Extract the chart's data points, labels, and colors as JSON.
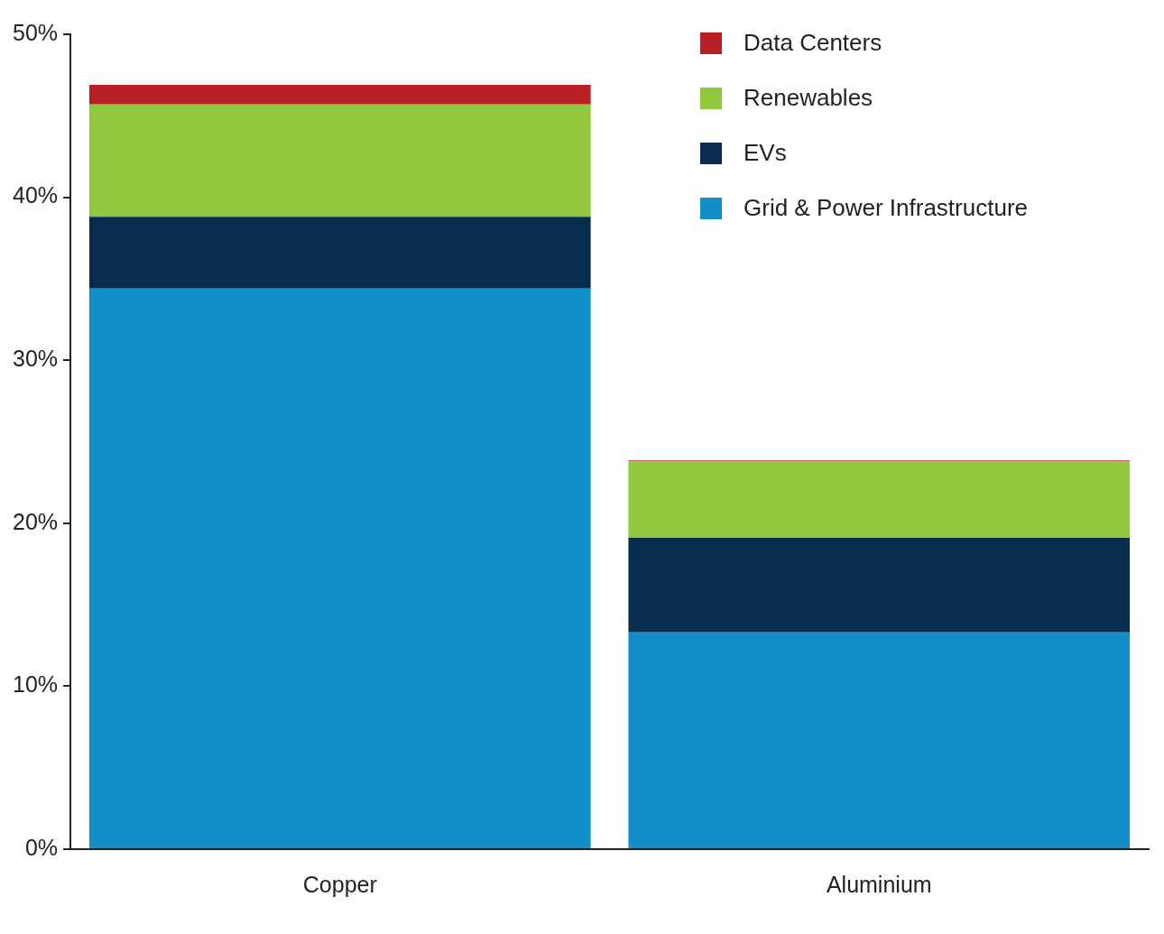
{
  "chart_data": {
    "type": "bar",
    "stacked": true,
    "categories": [
      "Copper",
      "Aluminium"
    ],
    "series": [
      {
        "name": "Grid & Power Infrastructure",
        "color": "#128fc6",
        "values": [
          34.4,
          13.3
        ]
      },
      {
        "name": "EVs",
        "color": "#082c4d",
        "values": [
          4.4,
          5.8
        ]
      },
      {
        "name": "Renewables",
        "color": "#92c83e",
        "values": [
          6.9,
          4.7
        ]
      },
      {
        "name": "Data Centers",
        "color": "#b82025",
        "values": [
          1.2,
          0.05
        ]
      }
    ],
    "ylim": [
      0,
      50
    ],
    "yticks": [
      {
        "value": 0,
        "label": "0%"
      },
      {
        "value": 10,
        "label": "10%"
      },
      {
        "value": 20,
        "label": "20%"
      },
      {
        "value": 30,
        "label": "30%"
      },
      {
        "value": 40,
        "label": "40%"
      },
      {
        "value": 50,
        "label": "50%"
      }
    ],
    "grid": false,
    "legend": "top right"
  }
}
